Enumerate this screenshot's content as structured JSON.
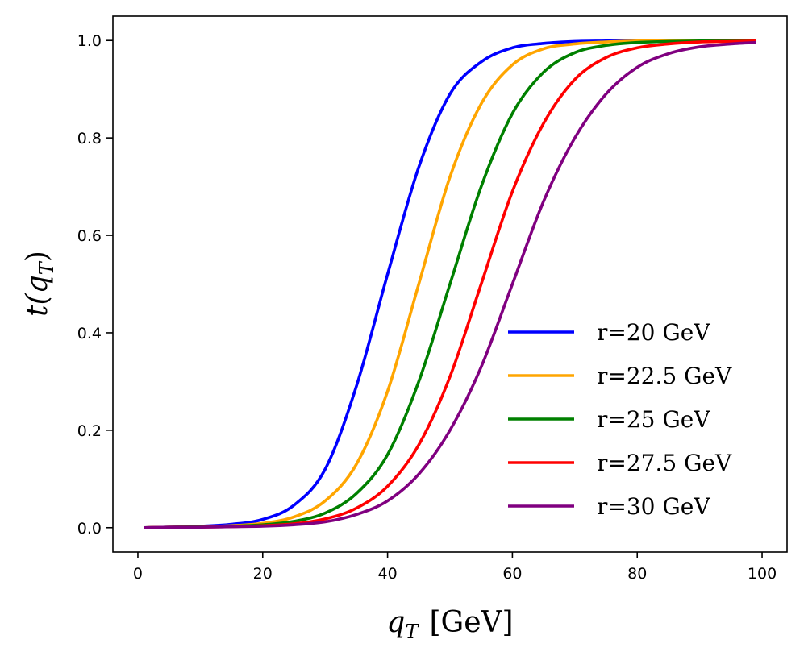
{
  "chart_data": {
    "type": "line",
    "title": "",
    "xlabel_var": "q",
    "xlabel_sub": "T",
    "xlabel_unit": "[GeV]",
    "ylabel_fn": "t(",
    "ylabel_var": "q",
    "ylabel_sub": "T",
    "ylabel_close": ")",
    "xlim": [
      -4,
      104
    ],
    "ylim": [
      -0.05,
      1.05
    ],
    "xticks": [
      0,
      20,
      40,
      60,
      80,
      100
    ],
    "xtick_labels": [
      "0",
      "20",
      "40",
      "60",
      "80",
      "100"
    ],
    "yticks": [
      0.0,
      0.2,
      0.4,
      0.6,
      0.8,
      1.0
    ],
    "ytick_labels": [
      "0.0",
      "0.2",
      "0.4",
      "0.6",
      "0.8",
      "1.0"
    ],
    "grid": false,
    "legend_position": "lower-right",
    "x": [
      1,
      5,
      10,
      15,
      20,
      25,
      30,
      35,
      40,
      45,
      50,
      55,
      60,
      65,
      70,
      75,
      80,
      85,
      90,
      95,
      99
    ],
    "series": [
      {
        "name": "r=20 GeV",
        "color": "#0000ff",
        "values": [
          0.0,
          0.001,
          0.003,
          0.007,
          0.017,
          0.046,
          0.12,
          0.29,
          0.52,
          0.74,
          0.89,
          0.956,
          0.985,
          0.994,
          0.998,
          0.999,
          1.0,
          1.0,
          1.0,
          1.0,
          1.0
        ]
      },
      {
        "name": "r=22.5 GeV",
        "color": "#ffa500",
        "values": [
          0.0,
          0.001,
          0.002,
          0.004,
          0.009,
          0.022,
          0.055,
          0.13,
          0.28,
          0.5,
          0.72,
          0.87,
          0.95,
          0.983,
          0.993,
          0.997,
          0.999,
          1.0,
          1.0,
          1.0,
          1.0
        ]
      },
      {
        "name": "r=25 GeV",
        "color": "#008000",
        "values": [
          0.0,
          0.001,
          0.002,
          0.003,
          0.006,
          0.013,
          0.03,
          0.07,
          0.15,
          0.3,
          0.5,
          0.7,
          0.85,
          0.935,
          0.975,
          0.99,
          0.996,
          0.998,
          0.999,
          1.0,
          1.0
        ]
      },
      {
        "name": "r=27.5 GeV",
        "color": "#ff0000",
        "values": [
          0.0,
          0.001,
          0.001,
          0.002,
          0.004,
          0.008,
          0.018,
          0.04,
          0.085,
          0.17,
          0.31,
          0.5,
          0.69,
          0.83,
          0.92,
          0.965,
          0.985,
          0.993,
          0.997,
          0.998,
          0.999
        ]
      },
      {
        "name": "r=30 GeV",
        "color": "#800080",
        "values": [
          0.0,
          0.001,
          0.001,
          0.002,
          0.003,
          0.006,
          0.012,
          0.027,
          0.055,
          0.11,
          0.2,
          0.33,
          0.5,
          0.67,
          0.8,
          0.89,
          0.945,
          0.973,
          0.987,
          0.993,
          0.996
        ]
      }
    ]
  }
}
